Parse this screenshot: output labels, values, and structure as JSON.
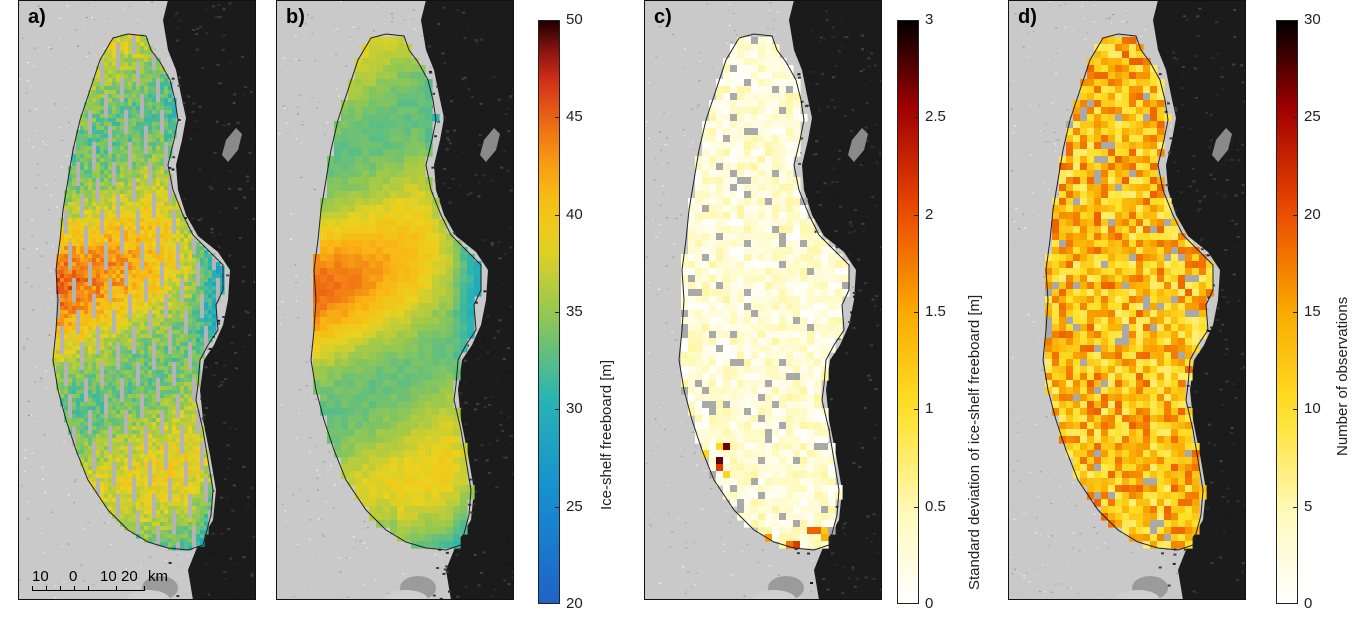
{
  "panels": [
    {
      "label": "a)",
      "colormap": "parula",
      "colorbar_shared_with_next": true,
      "pattern": "striped",
      "vmin": 20,
      "vmax": 50
    },
    {
      "label": "b)",
      "colormap": "parula",
      "colorbar": {
        "title": "Ice-shelf freeboard [m]",
        "ticks": [
          "20",
          "25",
          "30",
          "35",
          "40",
          "45",
          "50"
        ],
        "min": 20,
        "max": 50
      },
      "pattern": "smooth",
      "vmin": 20,
      "vmax": 50
    },
    {
      "label": "c)",
      "colormap": "hot-reversed",
      "colorbar": {
        "title": "Standard deviation of ice-shelf freeboard [m]",
        "ticks": [
          "0",
          "0.5",
          "1",
          "1.5",
          "2",
          "2.5",
          "3"
        ],
        "min": 0,
        "max": 3
      },
      "pattern": "std",
      "vmin": 0,
      "vmax": 3
    },
    {
      "label": "d)",
      "colormap": "hot-reversed",
      "colorbar": {
        "title": "Number of observations",
        "ticks": [
          "0",
          "5",
          "10",
          "15",
          "20",
          "25",
          "30"
        ],
        "min": 0,
        "max": 30
      },
      "pattern": "count",
      "vmin": 0,
      "vmax": 30
    }
  ],
  "scalebar": {
    "labels": [
      "10",
      "0",
      "10",
      "20",
      "km"
    ]
  },
  "colors": {
    "parula_low": "#1f63c6",
    "parula_mid": "#e5d41a",
    "parula_high": "#c8231c",
    "hot_low": "#fffde0",
    "hot_high": "#000000",
    "nodata": "#aaaaaa",
    "rock": "#1a1a1a",
    "ice_background": "#c8c8c8"
  }
}
